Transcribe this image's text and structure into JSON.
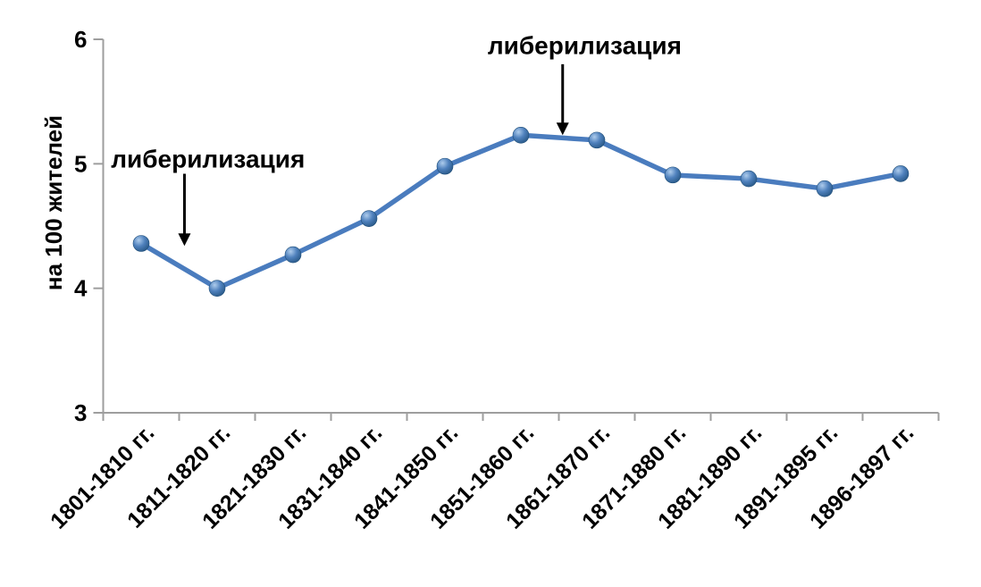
{
  "chart_data": {
    "type": "line",
    "title": "",
    "xlabel": "",
    "ylabel": "на 100 жителей",
    "ylim": [
      3,
      6
    ],
    "yticks": [
      3,
      4,
      5,
      6
    ],
    "grid": false,
    "legend": false,
    "categories": [
      "1801-1810 гг.",
      "1811-1820 гг.",
      "1821-1830 гг.",
      "1831-1840 гг.",
      "1841-1850 гг.",
      "1851-1860 гг.",
      "1861-1870 гг.",
      "1871-1880 гг.",
      "1881-1890 гг.",
      "1891-1895 гг.",
      "1896-1897 гг."
    ],
    "values": [
      4.36,
      4.0,
      4.27,
      4.56,
      4.98,
      5.23,
      5.19,
      4.91,
      4.88,
      4.8,
      4.92
    ],
    "annotations": [
      {
        "label": "либерилизация",
        "text_x": 0.88,
        "text_y": 5.04,
        "arrow_x": 0.57,
        "arrow_y_from": 4.92,
        "arrow_y_to": 4.34
      },
      {
        "label": "либерилизация",
        "text_x": 5.84,
        "text_y": 5.95,
        "arrow_x": 5.55,
        "arrow_y_from": 5.8,
        "arrow_y_to": 5.23
      }
    ],
    "colors": {
      "line": "#4a7cbe",
      "marker_light": "#aeccec",
      "marker_mid": "#4f81bd",
      "marker_dark": "#1f4e79",
      "axis": "#9e9e9e",
      "text": "#000000",
      "annotation_arrow": "#000000"
    }
  }
}
